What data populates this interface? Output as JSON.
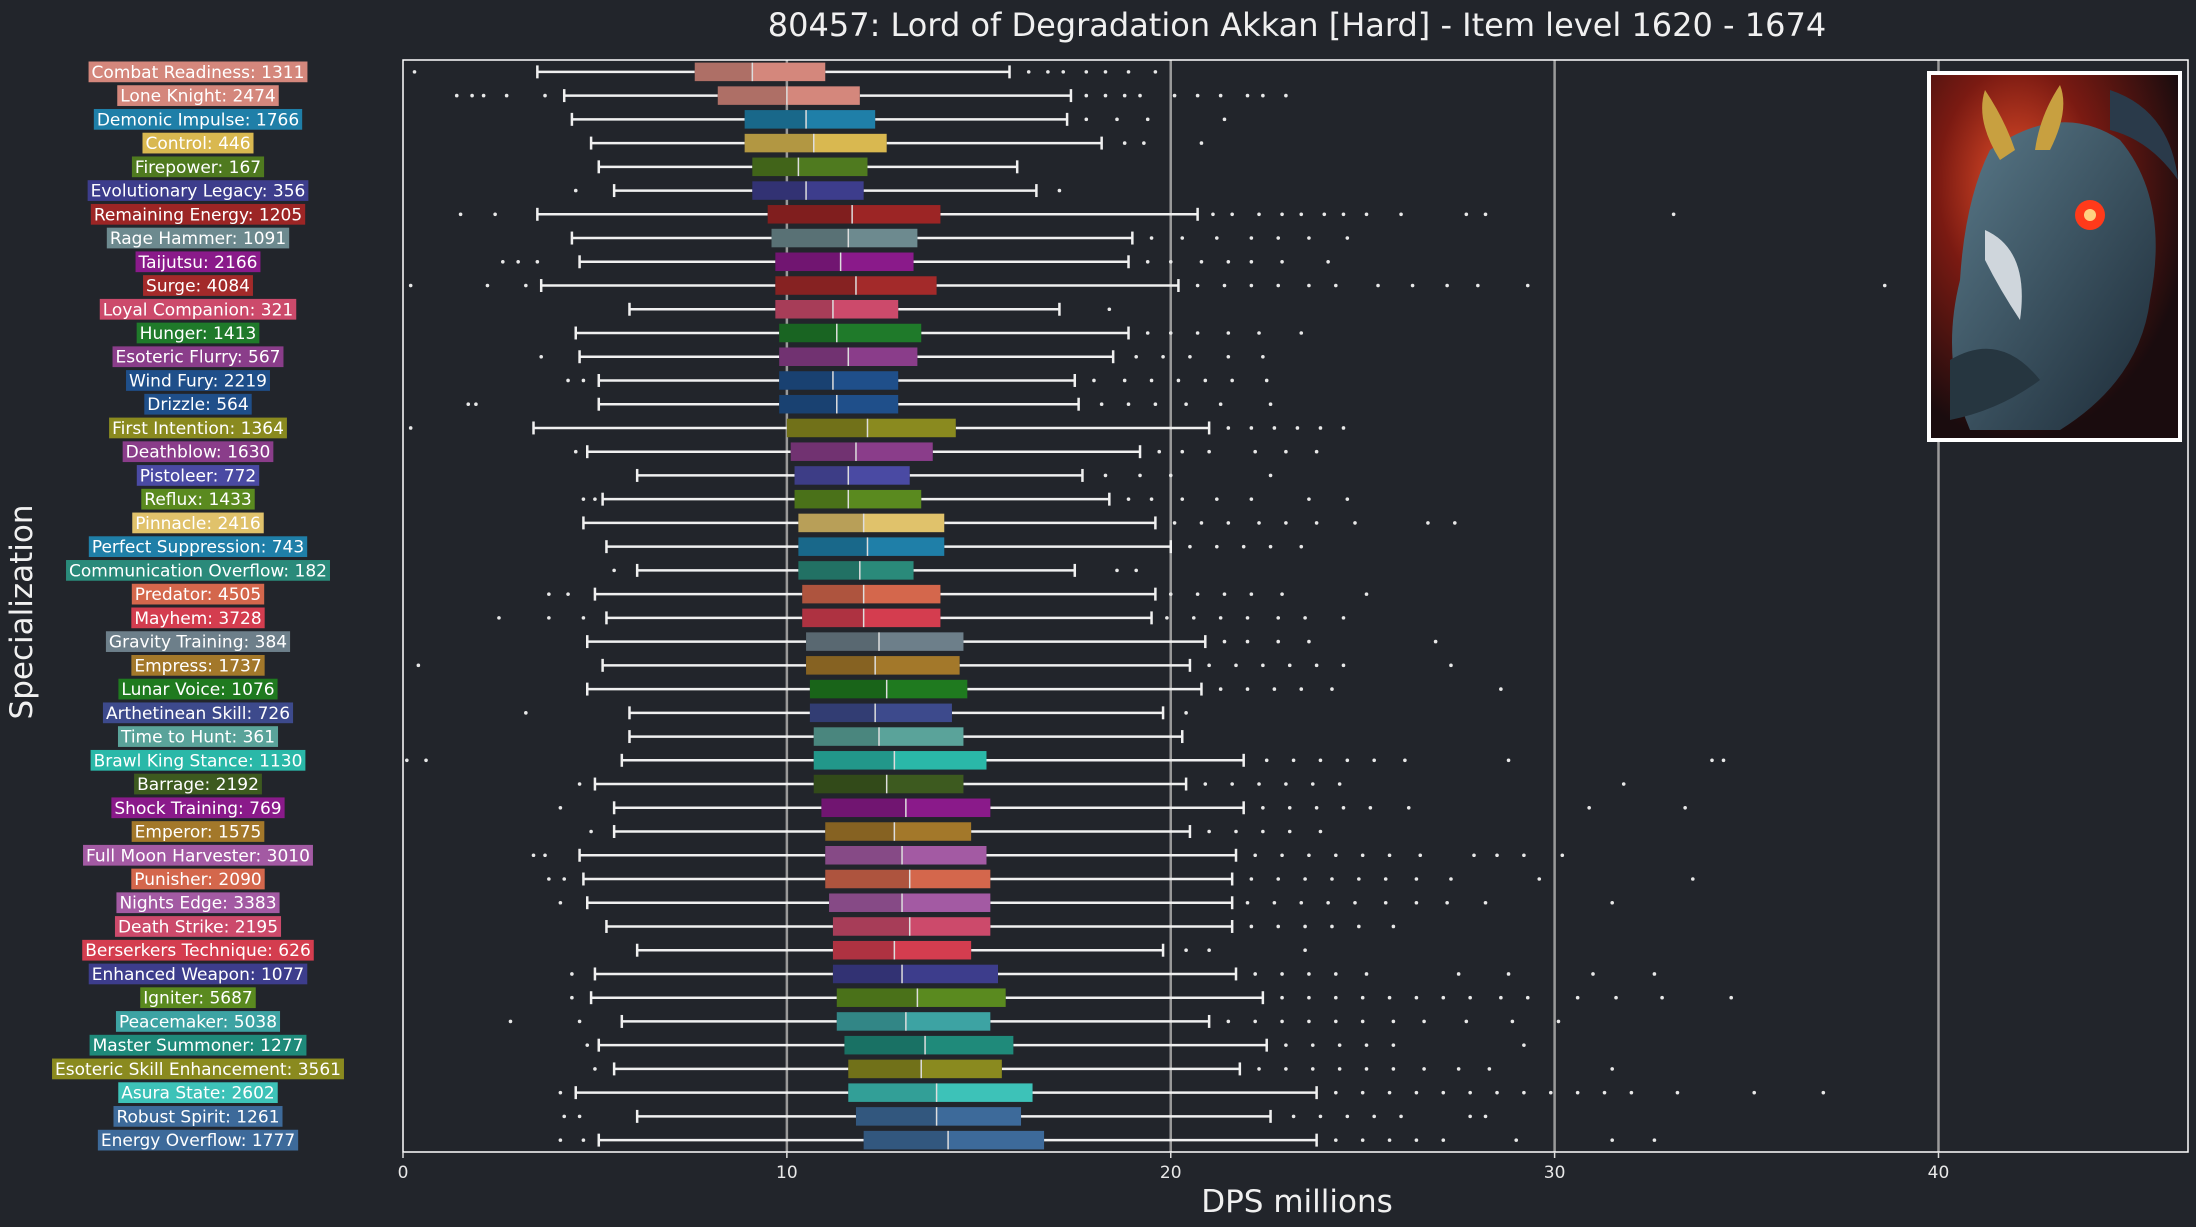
{
  "chart_data": {
    "type": "boxplot",
    "title": "80457: Lord of Degradation Akkan [Hard] - Item level 1620 - 1674",
    "xlabel": "DPS millions",
    "ylabel": "Specialization",
    "xlim": [
      0,
      46.5
    ],
    "xticks": [
      0,
      10,
      20,
      30,
      40
    ],
    "vlines": [
      10,
      20,
      30,
      40
    ],
    "orientation": "horizontal",
    "has_portrait_image": true,
    "portrait_icon": "demon-boss-portrait",
    "series": [
      {
        "label": "Combat Readiness: 1311",
        "color": "#d4877c",
        "whislo": 3.5,
        "q1": 7.6,
        "med": 9.1,
        "q3": 11.0,
        "whishi": 15.8,
        "fliers": [
          0.3,
          16.3,
          16.8,
          17.2,
          17.8,
          18.3,
          18.9,
          19.6
        ]
      },
      {
        "label": "Lone Knight: 2474",
        "color": "#d4877c",
        "whislo": 4.2,
        "q1": 8.2,
        "med": 10.0,
        "q3": 11.9,
        "whishi": 17.4,
        "fliers": [
          1.4,
          1.8,
          2.1,
          2.7,
          3.7,
          17.8,
          18.3,
          18.8,
          19.2,
          20.1,
          20.7,
          21.3,
          22.0,
          22.4,
          23.0
        ]
      },
      {
        "label": "Demonic Impulse: 1766",
        "color": "#1f7fa8",
        "whislo": 4.4,
        "q1": 8.9,
        "med": 10.5,
        "q3": 12.3,
        "whishi": 17.3,
        "fliers": [
          17.8,
          18.6,
          19.4,
          21.4
        ]
      },
      {
        "label": "Control: 446",
        "color": "#d9b850",
        "whislo": 4.9,
        "q1": 8.9,
        "med": 10.7,
        "q3": 12.6,
        "whishi": 18.2,
        "fliers": [
          18.8,
          19.3,
          20.8
        ]
      },
      {
        "label": "Firepower: 167",
        "color": "#4f7a1f",
        "whislo": 5.1,
        "q1": 9.1,
        "med": 10.3,
        "q3": 12.1,
        "whishi": 16.0,
        "fliers": []
      },
      {
        "label": "Evolutionary Legacy: 356",
        "color": "#3d3d8c",
        "whislo": 5.5,
        "q1": 9.1,
        "med": 10.5,
        "q3": 12.0,
        "whishi": 16.5,
        "fliers": [
          4.5,
          17.1
        ]
      },
      {
        "label": "Remaining Energy: 1205",
        "color": "#9c2525",
        "whislo": 3.5,
        "q1": 9.5,
        "med": 11.7,
        "q3": 14.0,
        "whishi": 20.7,
        "fliers": [
          1.5,
          2.4,
          21.1,
          21.6,
          22.3,
          22.9,
          23.4,
          24.0,
          24.5,
          25.1,
          26.0,
          27.7,
          28.2,
          33.1
        ]
      },
      {
        "label": "Rage Hammer: 1091",
        "color": "#6d8a8f",
        "whislo": 4.4,
        "q1": 9.6,
        "med": 11.6,
        "q3": 13.4,
        "whishi": 19.0,
        "fliers": [
          19.5,
          20.3,
          21.2,
          22.1,
          22.8,
          23.6,
          24.6
        ]
      },
      {
        "label": "Taijutsu: 2166",
        "color": "#8a1a8a",
        "whislo": 4.6,
        "q1": 9.7,
        "med": 11.4,
        "q3": 13.3,
        "whishi": 18.9,
        "fliers": [
          2.6,
          3.0,
          3.5,
          19.4,
          20.0,
          20.8,
          21.5,
          22.1,
          22.9,
          24.1
        ]
      },
      {
        "label": "Surge: 4084",
        "color": "#a32a2a",
        "whislo": 3.6,
        "q1": 9.7,
        "med": 11.8,
        "q3": 13.9,
        "whishi": 20.2,
        "fliers": [
          0.2,
          2.2,
          3.2,
          20.7,
          21.4,
          22.1,
          22.8,
          23.6,
          24.3,
          25.4,
          26.3,
          27.2,
          28.0,
          29.3,
          38.6
        ]
      },
      {
        "label": "Loyal Companion: 321",
        "color": "#cc4a6b",
        "whislo": 5.9,
        "q1": 9.7,
        "med": 11.2,
        "q3": 12.9,
        "whishi": 17.1,
        "fliers": [
          18.4
        ]
      },
      {
        "label": "Hunger: 1413",
        "color": "#1f7a2a",
        "whislo": 4.5,
        "q1": 9.8,
        "med": 11.3,
        "q3": 13.5,
        "whishi": 18.9,
        "fliers": [
          19.4,
          20.0,
          20.7,
          21.5,
          22.3,
          23.4
        ]
      },
      {
        "label": "Esoteric Flurry: 567",
        "color": "#8a3d8a",
        "whislo": 4.6,
        "q1": 9.8,
        "med": 11.6,
        "q3": 13.4,
        "whishi": 18.5,
        "fliers": [
          3.6,
          19.1,
          19.8,
          20.5,
          21.5,
          22.4
        ]
      },
      {
        "label": "Wind Fury: 2219",
        "color": "#1f4f8a",
        "whislo": 5.1,
        "q1": 9.8,
        "med": 11.2,
        "q3": 12.9,
        "whishi": 17.5,
        "fliers": [
          4.3,
          4.7,
          18.0,
          18.8,
          19.5,
          20.2,
          20.9,
          21.6,
          22.5
        ]
      },
      {
        "label": "Drizzle: 564",
        "color": "#1f4f8a",
        "whislo": 5.1,
        "q1": 9.8,
        "med": 11.3,
        "q3": 12.9,
        "whishi": 17.6,
        "fliers": [
          1.7,
          1.9,
          18.2,
          18.9,
          19.6,
          20.4,
          21.3,
          22.6
        ]
      },
      {
        "label": "First Intention: 1364",
        "color": "#8a8a1f",
        "whislo": 3.4,
        "q1": 10.0,
        "med": 12.1,
        "q3": 14.4,
        "whishi": 21.0,
        "fliers": [
          0.2,
          21.5,
          22.1,
          22.7,
          23.3,
          23.9,
          24.5
        ]
      },
      {
        "label": "Deathblow: 1630",
        "color": "#8a3d8a",
        "whislo": 4.8,
        "q1": 10.1,
        "med": 11.8,
        "q3": 13.8,
        "whishi": 19.2,
        "fliers": [
          4.5,
          19.7,
          20.3,
          21.0,
          22.2,
          23.0,
          23.8
        ]
      },
      {
        "label": "Pistoleer: 772",
        "color": "#4a4aa3",
        "whislo": 6.1,
        "q1": 10.2,
        "med": 11.6,
        "q3": 13.2,
        "whishi": 17.7,
        "fliers": [
          18.3,
          19.2,
          20.0,
          22.6
        ]
      },
      {
        "label": "Reflux: 1433",
        "color": "#5a8a1f",
        "whislo": 5.2,
        "q1": 10.2,
        "med": 11.6,
        "q3": 13.5,
        "whishi": 18.4,
        "fliers": [
          4.7,
          5.0,
          18.9,
          19.5,
          20.3,
          21.2,
          22.1,
          23.6,
          24.6
        ]
      },
      {
        "label": "Pinnacle: 2416",
        "color": "#e0c26b",
        "whislo": 4.7,
        "q1": 10.3,
        "med": 12.0,
        "q3": 14.1,
        "whishi": 19.6,
        "fliers": [
          20.1,
          20.8,
          21.5,
          22.3,
          23.0,
          23.8,
          24.8,
          26.7,
          27.4
        ]
      },
      {
        "label": "Perfect Suppression: 743",
        "color": "#1f7fa8",
        "whislo": 5.3,
        "q1": 10.3,
        "med": 12.1,
        "q3": 14.1,
        "whishi": 20.0,
        "fliers": [
          20.5,
          21.2,
          21.9,
          22.6,
          23.4
        ]
      },
      {
        "label": "Communication Overflow: 182",
        "color": "#2a8a7a",
        "whislo": 6.1,
        "q1": 10.3,
        "med": 11.9,
        "q3": 13.3,
        "whishi": 17.5,
        "fliers": [
          5.5,
          18.6,
          19.1
        ]
      },
      {
        "label": "Predator: 4505",
        "color": "#d4674c",
        "whislo": 5.0,
        "q1": 10.4,
        "med": 12.0,
        "q3": 14.0,
        "whishi": 19.6,
        "fliers": [
          3.8,
          4.3,
          20.0,
          20.7,
          21.4,
          22.1,
          22.9,
          25.1
        ]
      },
      {
        "label": "Mayhem: 3728",
        "color": "#d43d4f",
        "whislo": 5.3,
        "q1": 10.4,
        "med": 12.0,
        "q3": 14.0,
        "whishi": 19.5,
        "fliers": [
          2.5,
          3.8,
          4.7,
          19.9,
          20.6,
          21.3,
          22.0,
          22.8,
          23.5,
          24.5
        ]
      },
      {
        "label": "Gravity Training: 384",
        "color": "#6d7f8a",
        "whislo": 4.8,
        "q1": 10.5,
        "med": 12.4,
        "q3": 14.6,
        "whishi": 20.9,
        "fliers": [
          21.4,
          22.0,
          22.8,
          23.6,
          26.9
        ]
      },
      {
        "label": "Empress: 1737",
        "color": "#a3782a",
        "whislo": 5.2,
        "q1": 10.5,
        "med": 12.3,
        "q3": 14.5,
        "whishi": 20.5,
        "fliers": [
          0.4,
          21.0,
          21.7,
          22.4,
          23.1,
          23.8,
          24.5,
          27.3
        ]
      },
      {
        "label": "Lunar Voice: 1076",
        "color": "#1f7a1f",
        "whislo": 4.8,
        "q1": 10.6,
        "med": 12.6,
        "q3": 14.7,
        "whishi": 20.8,
        "fliers": [
          21.3,
          22.0,
          22.7,
          23.4,
          24.2,
          28.6
        ]
      },
      {
        "label": "Arthetinean Skill: 726",
        "color": "#3d4a8c",
        "whislo": 5.9,
        "q1": 10.6,
        "med": 12.3,
        "q3": 14.3,
        "whishi": 19.8,
        "fliers": [
          3.2,
          20.4
        ]
      },
      {
        "label": "Time to Hunt: 361",
        "color": "#5aa39a",
        "whislo": 5.9,
        "q1": 10.7,
        "med": 12.4,
        "q3": 14.6,
        "whishi": 20.3,
        "fliers": []
      },
      {
        "label": "Brawl King Stance: 1130",
        "color": "#2ab8a8",
        "whislo": 5.7,
        "q1": 10.7,
        "med": 12.8,
        "q3": 15.2,
        "whishi": 21.9,
        "fliers": [
          0.1,
          0.6,
          22.5,
          23.2,
          23.9,
          24.6,
          25.3,
          26.1,
          28.8,
          34.1,
          34.4
        ]
      },
      {
        "label": "Barrage: 2192",
        "color": "#3d5a1f",
        "whislo": 5.0,
        "q1": 10.7,
        "med": 12.6,
        "q3": 14.6,
        "whishi": 20.4,
        "fliers": [
          4.6,
          20.9,
          21.6,
          22.3,
          23.0,
          23.7,
          24.4,
          31.8
        ]
      },
      {
        "label": "Shock Training: 769",
        "color": "#8a1a8a",
        "whislo": 5.5,
        "q1": 10.9,
        "med": 13.1,
        "q3": 15.3,
        "whishi": 21.9,
        "fliers": [
          4.1,
          22.4,
          23.1,
          23.8,
          24.5,
          25.2,
          26.2,
          30.9,
          33.4
        ]
      },
      {
        "label": "Emperor: 1575",
        "color": "#a3782a",
        "whislo": 5.5,
        "q1": 11.0,
        "med": 12.8,
        "q3": 14.8,
        "whishi": 20.5,
        "fliers": [
          4.9,
          21.0,
          21.7,
          22.4,
          23.1,
          23.9
        ]
      },
      {
        "label": "Full Moon Harvester: 3010",
        "color": "#a35aa3",
        "whislo": 4.6,
        "q1": 11.0,
        "med": 13.0,
        "q3": 15.2,
        "whishi": 21.7,
        "fliers": [
          3.4,
          3.7,
          22.2,
          22.9,
          23.6,
          24.3,
          25.0,
          25.7,
          26.5,
          27.9,
          28.5,
          29.2,
          30.2
        ]
      },
      {
        "label": "Punisher: 2090",
        "color": "#d4674c",
        "whislo": 4.7,
        "q1": 11.0,
        "med": 13.2,
        "q3": 15.3,
        "whishi": 21.6,
        "fliers": [
          3.8,
          4.2,
          22.1,
          22.8,
          23.5,
          24.2,
          24.9,
          25.6,
          26.4,
          27.3,
          29.6,
          33.6
        ]
      },
      {
        "label": "Nights Edge: 3383",
        "color": "#a35aa3",
        "whislo": 4.8,
        "q1": 11.1,
        "med": 13.0,
        "q3": 15.3,
        "whishi": 21.6,
        "fliers": [
          4.1,
          22.0,
          22.7,
          23.4,
          24.1,
          24.8,
          25.6,
          26.4,
          27.2,
          28.2,
          31.5
        ]
      },
      {
        "label": "Death Strike: 2195",
        "color": "#cc4a6b",
        "whislo": 5.3,
        "q1": 11.2,
        "med": 13.2,
        "q3": 15.3,
        "whishi": 21.6,
        "fliers": [
          22.1,
          22.8,
          23.5,
          24.2,
          24.9,
          25.8
        ]
      },
      {
        "label": "Berserkers Technique: 626",
        "color": "#d43d4f",
        "whislo": 6.1,
        "q1": 11.2,
        "med": 12.8,
        "q3": 14.8,
        "whishi": 19.8,
        "fliers": [
          20.4,
          21.0,
          23.5
        ]
      },
      {
        "label": "Enhanced Weapon: 1077",
        "color": "#3d3d8c",
        "whislo": 5.0,
        "q1": 11.2,
        "med": 13.0,
        "q3": 15.5,
        "whishi": 21.7,
        "fliers": [
          4.4,
          22.2,
          22.9,
          23.6,
          24.3,
          25.1,
          27.5,
          28.8,
          31.0,
          32.6
        ]
      },
      {
        "label": "Igniter: 5687",
        "color": "#5a8a1f",
        "whislo": 4.9,
        "q1": 11.3,
        "med": 13.4,
        "q3": 15.7,
        "whishi": 22.4,
        "fliers": [
          4.4,
          22.9,
          23.6,
          24.3,
          25.0,
          25.7,
          26.4,
          27.1,
          27.8,
          28.6,
          29.3,
          30.6,
          31.6,
          32.8,
          34.6
        ]
      },
      {
        "label": "Peacemaker: 5038",
        "color": "#3da3a3",
        "whislo": 5.7,
        "q1": 11.3,
        "med": 13.1,
        "q3": 15.3,
        "whishi": 21.0,
        "fliers": [
          2.8,
          4.6,
          21.5,
          22.2,
          22.9,
          23.6,
          24.3,
          25.0,
          25.8,
          26.6,
          27.7,
          28.9,
          30.1
        ]
      },
      {
        "label": "Master Summoner: 1277",
        "color": "#1f8a7a",
        "whislo": 5.1,
        "q1": 11.5,
        "med": 13.6,
        "q3": 15.9,
        "whishi": 22.5,
        "fliers": [
          4.8,
          23.0,
          23.7,
          24.4,
          25.1,
          25.8,
          29.2
        ]
      },
      {
        "label": "Esoteric Skill Enhancement: 3561",
        "color": "#8a8a1f",
        "whislo": 5.5,
        "q1": 11.6,
        "med": 13.5,
        "q3": 15.6,
        "whishi": 21.8,
        "fliers": [
          5.0,
          22.3,
          23.0,
          23.7,
          24.4,
          25.1,
          25.8,
          26.6,
          27.5,
          28.3,
          31.5
        ]
      },
      {
        "label": "Asura State: 2602",
        "color": "#3dc2b8",
        "whislo": 4.5,
        "q1": 11.6,
        "med": 13.9,
        "q3": 16.4,
        "whishi": 23.8,
        "fliers": [
          4.1,
          24.3,
          25.0,
          25.7,
          26.4,
          27.1,
          27.8,
          28.5,
          29.2,
          29.9,
          30.6,
          31.3,
          32.0,
          33.2,
          35.2,
          37.0
        ]
      },
      {
        "label": "Robust Spirit: 1261",
        "color": "#3d6a9a",
        "whislo": 6.1,
        "q1": 11.8,
        "med": 13.9,
        "q3": 16.1,
        "whishi": 22.6,
        "fliers": [
          4.2,
          4.6,
          23.2,
          23.9,
          24.6,
          25.3,
          26.0,
          27.8,
          28.2
        ]
      },
      {
        "label": "Energy Overflow: 1777",
        "color": "#3d6a9a",
        "whislo": 5.1,
        "q1": 12.0,
        "med": 14.2,
        "q3": 16.7,
        "whishi": 23.8,
        "fliers": [
          4.1,
          4.7,
          24.3,
          25.0,
          25.7,
          26.4,
          27.1,
          29.0,
          31.5,
          32.6
        ]
      }
    ]
  }
}
